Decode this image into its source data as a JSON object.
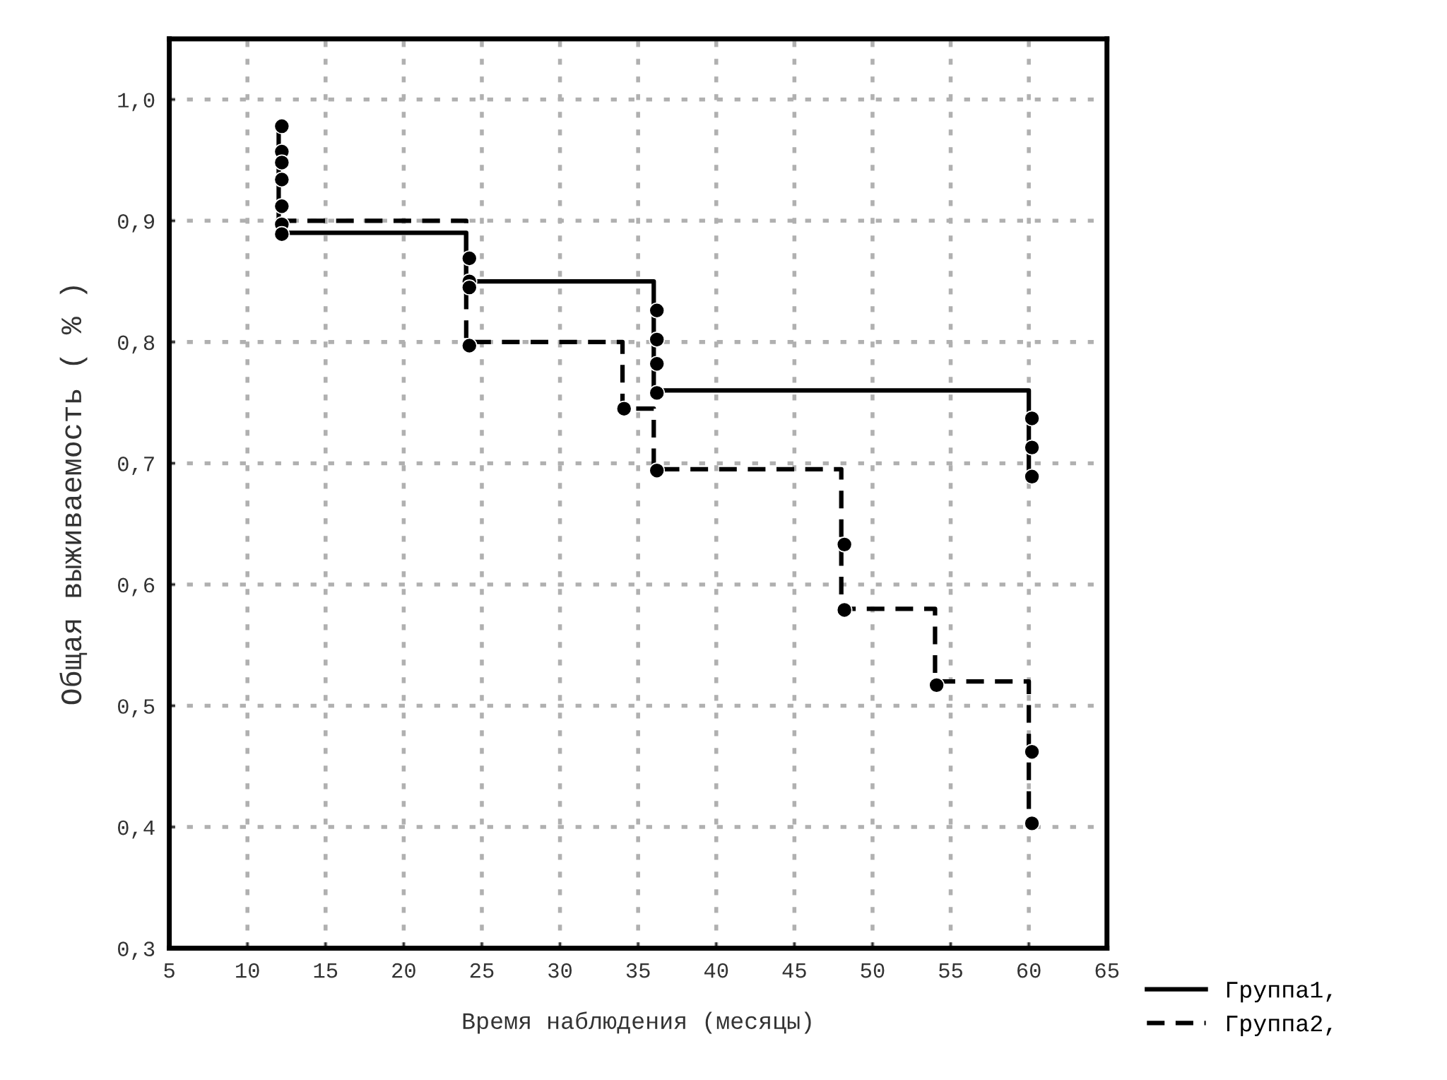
{
  "chart_data": {
    "type": "step",
    "xlabel": "Время наблюдения (месяцы)",
    "ylabel": "Общая выживаемость ( % )",
    "xlim": [
      5,
      65
    ],
    "xticks": [
      5,
      10,
      15,
      20,
      25,
      30,
      35,
      40,
      45,
      50,
      55,
      60,
      65
    ],
    "ylim": [
      0.3,
      1.05
    ],
    "yticks": [
      {
        "value": 0.3,
        "label": "0,3"
      },
      {
        "value": 0.4,
        "label": "0,4"
      },
      {
        "value": 0.5,
        "label": "0,5"
      },
      {
        "value": 0.6,
        "label": "0,6"
      },
      {
        "value": 0.7,
        "label": "0,7"
      },
      {
        "value": 0.8,
        "label": "0,8"
      },
      {
        "value": 0.9,
        "label": "0,9"
      },
      {
        "value": 1.0,
        "label": "1,0"
      }
    ],
    "grid": true,
    "legend": "bottom right",
    "series": [
      {
        "name": "Группа1,",
        "color": "#000000",
        "line_style": "solid",
        "marker": "none",
        "x": [
          12,
          12,
          24,
          36,
          60
        ],
        "values": [
          0.98,
          0.89,
          0.85,
          0.76,
          0.69
        ]
      },
      {
        "name": "Группа2,",
        "color": "#000000",
        "line_style": "dashed",
        "marker": "none",
        "x": [
          12,
          24,
          34,
          36,
          48,
          54,
          60
        ],
        "values": [
          0.9,
          0.8,
          0.745,
          0.695,
          0.58,
          0.52,
          0.4
        ]
      },
      {
        "type": "scatter",
        "color": "#000000",
        "marker": "circle",
        "x": [
          12.2,
          12.2,
          12.2,
          12.2,
          12.2,
          12.2,
          12.2,
          24.2,
          24.2,
          24.2,
          36.2,
          36.2,
          36.2,
          36.2,
          60.2,
          60.2,
          60.2
        ],
        "values": [
          0.978,
          0.957,
          0.948,
          0.934,
          0.912,
          0.897,
          0.889,
          0.869,
          0.85,
          0.845,
          0.826,
          0.802,
          0.782,
          0.758,
          0.737,
          0.713,
          0.689
        ]
      },
      {
        "type": "scatter",
        "color": "#000000",
        "marker": "circle",
        "x": [
          24.2,
          34.1,
          36.2,
          48.2,
          48.2,
          54.1,
          60.2,
          60.2
        ],
        "values": [
          0.797,
          0.745,
          0.694,
          0.633,
          0.579,
          0.517,
          0.462,
          0.403
        ]
      }
    ]
  }
}
